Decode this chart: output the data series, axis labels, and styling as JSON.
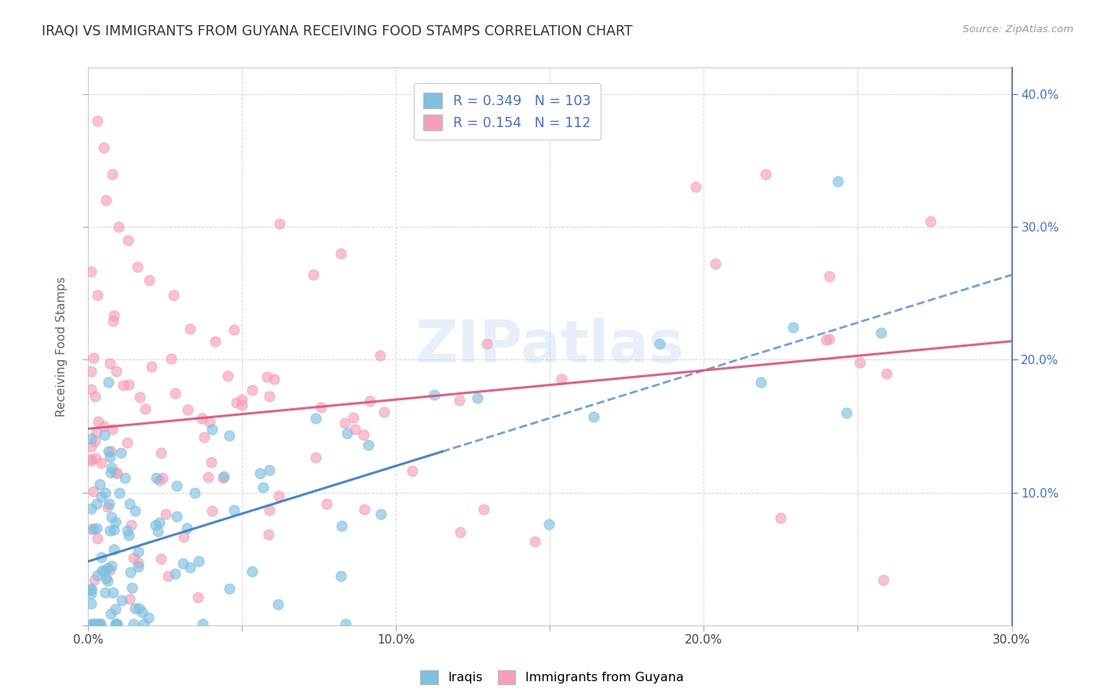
{
  "title": "IRAQI VS IMMIGRANTS FROM GUYANA RECEIVING FOOD STAMPS CORRELATION CHART",
  "source": "Source: ZipAtlas.com",
  "ylabel": "Receiving Food Stamps",
  "xlim": [
    0.0,
    0.3
  ],
  "ylim": [
    0.0,
    0.42
  ],
  "xtick_vals": [
    0.0,
    0.05,
    0.1,
    0.15,
    0.2,
    0.25,
    0.3
  ],
  "xtick_labels": [
    "0.0%",
    "",
    "10.0%",
    "",
    "20.0%",
    "",
    "30.0%"
  ],
  "ytick_right_vals": [
    0.1,
    0.2,
    0.3,
    0.4
  ],
  "ytick_right_labels": [
    "10.0%",
    "20.0%",
    "30.0%",
    "40.0%"
  ],
  "blue_R": 0.349,
  "blue_N": 103,
  "pink_R": 0.154,
  "pink_N": 112,
  "blue_color": "#7fbfdf",
  "pink_color": "#f4a0b8",
  "blue_line_color": "#3a7abf",
  "pink_line_color": "#d9537a",
  "blue_line_slope": 0.72,
  "blue_line_intercept": 0.048,
  "pink_line_slope": 0.22,
  "pink_line_intercept": 0.148,
  "legend_label_blue": "Iraqis",
  "legend_label_pink": "Immigrants from Guyana",
  "watermark": "ZIPatlas",
  "background_color": "#ffffff",
  "grid_color": "#cccccc",
  "title_color": "#333333",
  "right_axis_color": "#4472c4",
  "legend_text_color": "#4472c4"
}
